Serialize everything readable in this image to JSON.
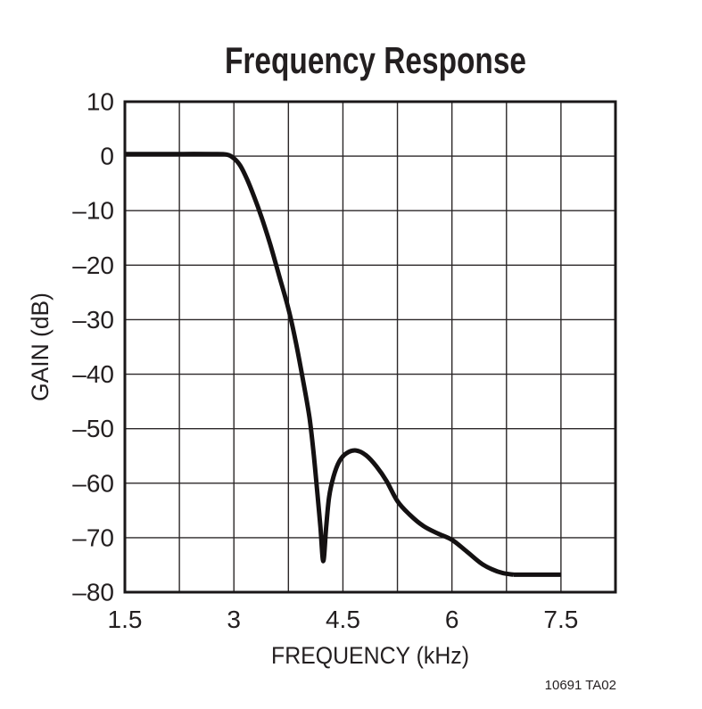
{
  "figure": {
    "note": "10691 TA02"
  },
  "colors": {
    "ink": "#231f20",
    "grid": "#2b2728",
    "frame": "#1a1718",
    "curve": "#141112",
    "background": "#ffffff"
  },
  "chart_data": {
    "type": "line",
    "title": "Frequency Response",
    "xlabel": "FREQUENCY (kHz)",
    "ylabel": "GAIN (dB)",
    "xlim": [
      1.5,
      8.25
    ],
    "ylim": [
      -80,
      10
    ],
    "x_grid_step": 0.75,
    "y_grid_step": 10,
    "grid": true,
    "legend": "none",
    "xticks": [
      {
        "value": 1.5,
        "label": "1.5"
      },
      {
        "value": 3,
        "label": "3"
      },
      {
        "value": 4.5,
        "label": "4.5"
      },
      {
        "value": 6,
        "label": "6"
      },
      {
        "value": 7.5,
        "label": "7.5"
      }
    ],
    "yticks": [
      {
        "value": 10,
        "label": "10"
      },
      {
        "value": 0,
        "label": "0"
      },
      {
        "value": -10,
        "label": "–10"
      },
      {
        "value": -20,
        "label": "–20"
      },
      {
        "value": -30,
        "label": "–30"
      },
      {
        "value": -40,
        "label": "–40"
      },
      {
        "value": -50,
        "label": "–50"
      },
      {
        "value": -60,
        "label": "–60"
      },
      {
        "value": -70,
        "label": "–70"
      },
      {
        "value": -80,
        "label": "–80"
      }
    ],
    "series": [
      {
        "name": "gain",
        "points": [
          [
            1.5,
            0.4
          ],
          [
            1.9,
            0.4
          ],
          [
            2.3,
            0.4
          ],
          [
            2.7,
            0.4
          ],
          [
            2.9,
            0.3
          ],
          [
            3.0,
            -0.4
          ],
          [
            3.09,
            -1.8
          ],
          [
            3.18,
            -4.2
          ],
          [
            3.28,
            -7.5
          ],
          [
            3.38,
            -11.2
          ],
          [
            3.5,
            -16.2
          ],
          [
            3.62,
            -21.8
          ],
          [
            3.75,
            -28
          ],
          [
            3.85,
            -34
          ],
          [
            3.95,
            -41
          ],
          [
            4.04,
            -48
          ],
          [
            4.1,
            -55
          ],
          [
            4.15,
            -62
          ],
          [
            4.19,
            -68
          ],
          [
            4.23,
            -74.3
          ],
          [
            4.27,
            -68
          ],
          [
            4.31,
            -62.5
          ],
          [
            4.37,
            -58.8
          ],
          [
            4.45,
            -56
          ],
          [
            4.55,
            -54.5
          ],
          [
            4.68,
            -54
          ],
          [
            4.82,
            -54.9
          ],
          [
            4.96,
            -56.9
          ],
          [
            5.1,
            -59.6
          ],
          [
            5.25,
            -63.3
          ],
          [
            5.42,
            -65.8
          ],
          [
            5.6,
            -67.8
          ],
          [
            5.8,
            -69.2
          ],
          [
            6.0,
            -70.4
          ],
          [
            6.2,
            -72.5
          ],
          [
            6.4,
            -74.7
          ],
          [
            6.55,
            -75.8
          ],
          [
            6.7,
            -76.5
          ],
          [
            6.85,
            -76.8
          ],
          [
            7.1,
            -76.8
          ],
          [
            7.3,
            -76.8
          ],
          [
            7.5,
            -76.8
          ]
        ]
      }
    ]
  }
}
